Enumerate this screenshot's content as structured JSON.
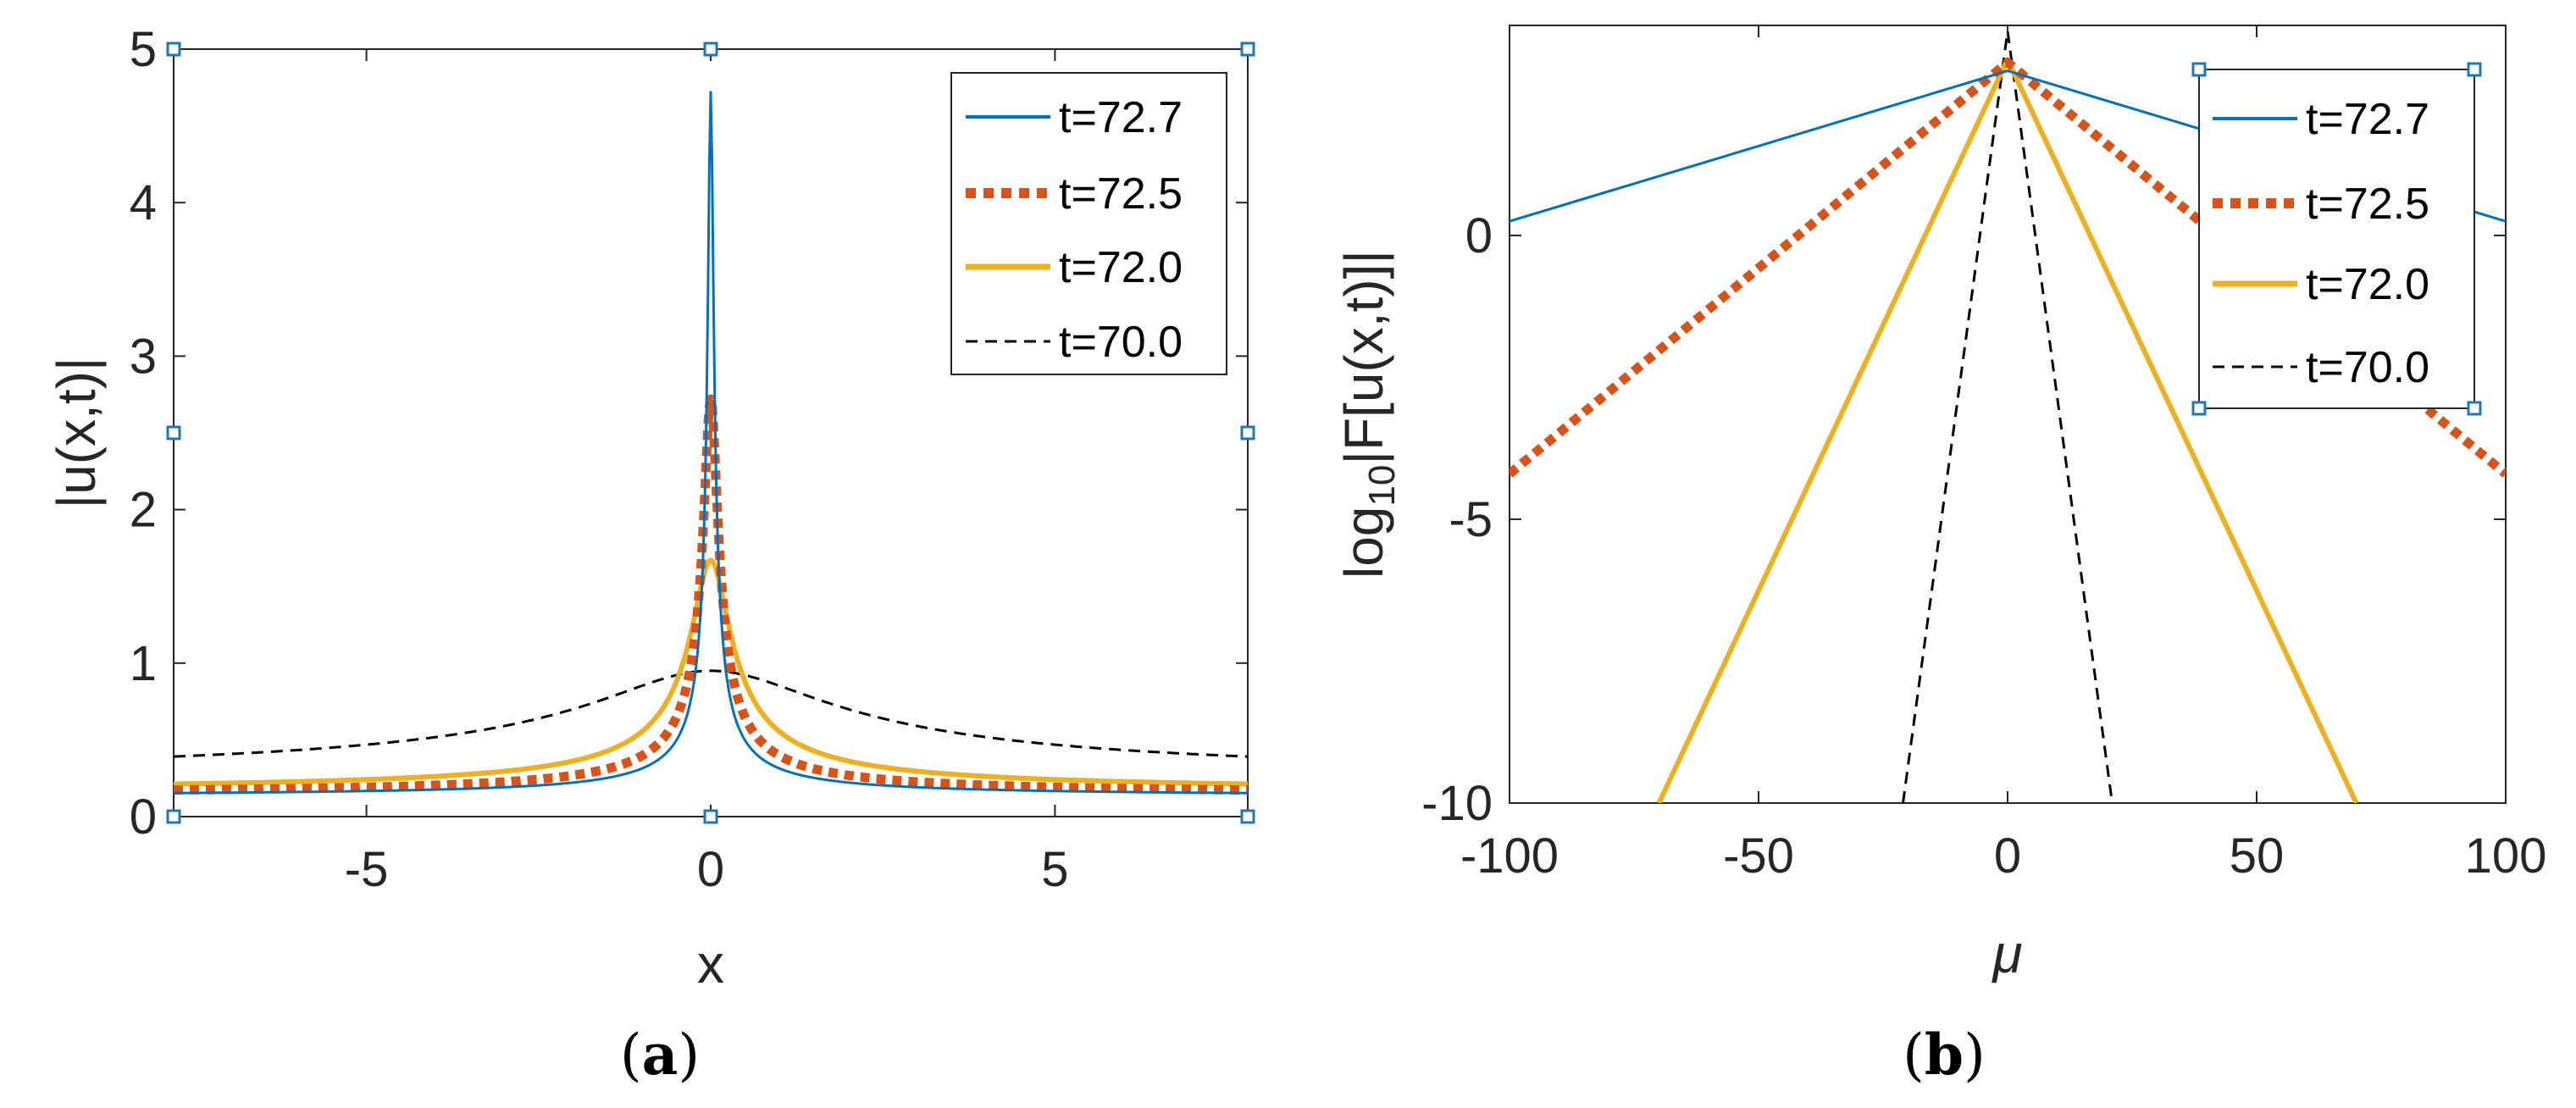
{
  "colors": {
    "t72_7": "#0072BD",
    "t72_5": "#D95319",
    "t72_0": "#EDB120",
    "t70_0": "#000000"
  },
  "chart_data": [
    {
      "type": "line",
      "panel_label": "(a)",
      "panel_letter": "a",
      "title": "",
      "xlabel": "x",
      "ylabel": "|u(x,t)|",
      "xlim": [
        -7.8,
        7.8
      ],
      "ylim": [
        0,
        5
      ],
      "xticks": [
        -5,
        0,
        5
      ],
      "xtick_labels": [
        "-5",
        "0",
        "5"
      ],
      "yticks": [
        0,
        1,
        2,
        3,
        4,
        5
      ],
      "ytick_labels": [
        "0",
        "1",
        "2",
        "3",
        "4",
        "5"
      ],
      "legend_position": "top-right",
      "series": [
        {
          "name": "t=72.7",
          "style": "solid-thin",
          "color": "#0072BD",
          "profile": {
            "base": 0.13,
            "peak": 4.72,
            "width": 0.04
          }
        },
        {
          "name": "t=72.5",
          "style": "dotted-thick",
          "color": "#D95319",
          "profile": {
            "base": 0.14,
            "peak": 2.72,
            "width": 0.1
          }
        },
        {
          "name": "t=72.0",
          "style": "solid-thick",
          "color": "#EDB120",
          "profile": {
            "base": 0.16,
            "peak": 1.67,
            "width": 0.27
          }
        },
        {
          "name": "t=70.0",
          "style": "dashed-thin",
          "color": "#000000",
          "profile": {
            "base": 0.24,
            "peak": 0.95,
            "width": 1.7
          }
        }
      ]
    },
    {
      "type": "line",
      "panel_label": "(b)",
      "panel_letter": "b",
      "title": "",
      "xlabel": "μ",
      "ylabel": "log10|F[u(x,t)]|",
      "ylabel_parts": {
        "log": "log",
        "sub": "10",
        "rest": "|F[u(x,t)]|"
      },
      "xlim": [
        -100,
        100
      ],
      "ylim": [
        -10,
        3.7
      ],
      "xticks": [
        -100,
        -50,
        0,
        50,
        100
      ],
      "xtick_labels": [
        "-100",
        "-50",
        "0",
        "50",
        "100"
      ],
      "yticks": [
        -10,
        -5,
        0
      ],
      "ytick_labels": [
        "-10",
        "-5",
        "0"
      ],
      "legend_position": "top-right",
      "series": [
        {
          "name": "t=72.7",
          "style": "solid-thin",
          "color": "#0072BD",
          "x": [
            -100,
            0,
            100
          ],
          "y": [
            0.25,
            2.9,
            0.25
          ]
        },
        {
          "name": "t=72.5",
          "style": "dotted-thick",
          "color": "#D95319",
          "x": [
            -100,
            0,
            100
          ],
          "y": [
            -4.2,
            3.05,
            -4.2
          ]
        },
        {
          "name": "t=72.0",
          "style": "solid-thick",
          "color": "#EDB120",
          "x": [
            -70,
            0,
            70
          ],
          "y": [
            -10,
            3.1,
            -10
          ]
        },
        {
          "name": "t=70.0",
          "style": "dashed-thin",
          "color": "#000000",
          "x": [
            -21,
            0,
            21
          ],
          "y": [
            -10,
            3.6,
            -10
          ]
        }
      ]
    }
  ]
}
